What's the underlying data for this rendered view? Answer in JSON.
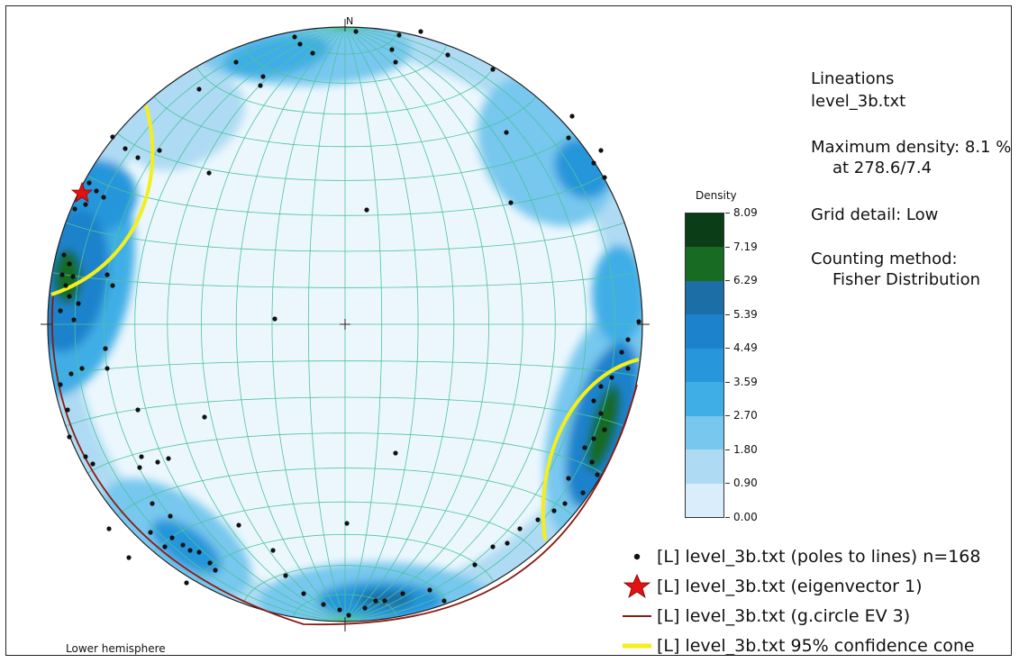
{
  "plot": {
    "north_label": "N",
    "hemisphere_label": "Lower hemisphere"
  },
  "info": {
    "title": "Lineations",
    "file": "level_3b.txt",
    "max_density_line1": "Maximum density: 8.1 %",
    "max_density_line2": "at 278.6/7.4",
    "grid_detail": "Grid detail: Low",
    "counting_method_label": "Counting method:",
    "counting_method_value": "Fisher Distribution"
  },
  "colorbar": {
    "title": "Density",
    "labels": [
      "8.09",
      "7.19",
      "6.29",
      "5.39",
      "4.49",
      "3.59",
      "2.70",
      "1.80",
      "0.90",
      "0.00"
    ],
    "colors": [
      "#0b3d16",
      "#176b23",
      "#1c6fa6",
      "#1d82cc",
      "#2796db",
      "#40aee6",
      "#77c7ee",
      "#aedbf3",
      "#d9eefa"
    ]
  },
  "legend": [
    {
      "symbol": "dot-icon",
      "label": "[L] level_3b.txt (poles to lines) n=168",
      "color": "#111111"
    },
    {
      "symbol": "star-icon",
      "label": "[L] level_3b.txt (eigenvector 1)",
      "color": "#e31212"
    },
    {
      "symbol": "line-icon",
      "label": "[L] level_3b.txt (g.circle EV 3)",
      "color": "#8b1a10"
    },
    {
      "symbol": "thick-line-icon",
      "label": "[L] level_3b.txt 95% confidence cone",
      "color": "#f4ee1c"
    }
  ],
  "colors": {
    "net_background": "#ecf7fd",
    "grid": "#4cc39e",
    "cone": "#f4ee1c",
    "great_circle": "#8b1a10",
    "eigenvector": "#e31212"
  }
}
